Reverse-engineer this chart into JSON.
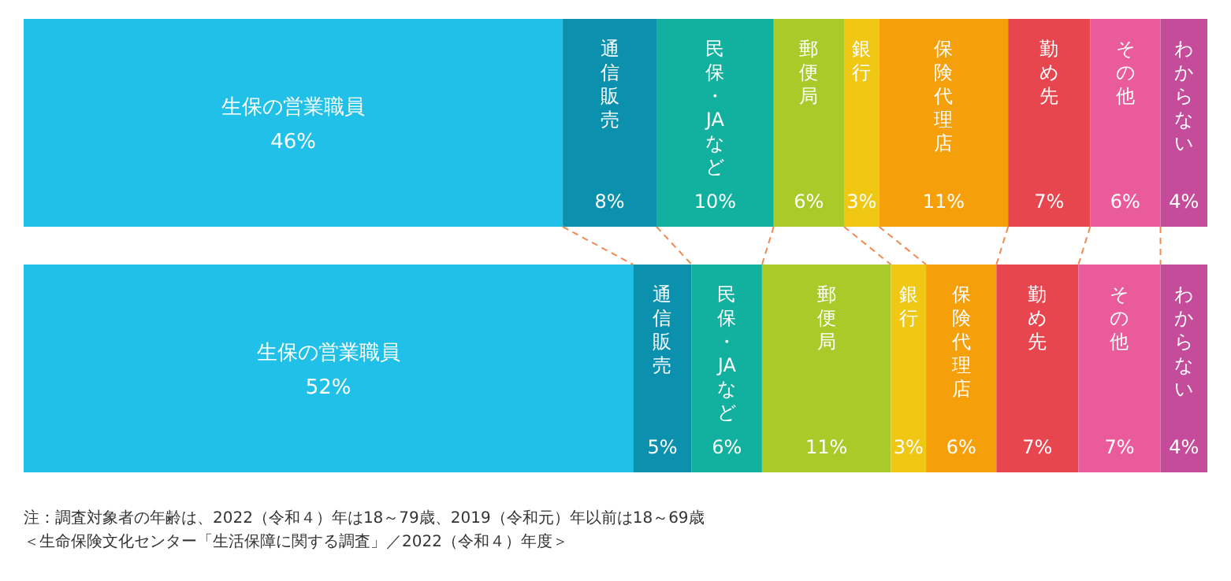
{
  "chart_data": {
    "type": "bar",
    "orientation": "horizontal",
    "stacked": true,
    "categories": [
      null,
      null
    ],
    "xlim": [
      0,
      101
    ],
    "tick_labels": false,
    "legend": false,
    "grid": false,
    "series": [
      {
        "name": "生保の営業職員",
        "color": "#20c0e8",
        "values": [
          46,
          52
        ],
        "value_labels": [
          "46%",
          "52%"
        ]
      },
      {
        "name": "通信販売",
        "color": "#0b90ae",
        "values": [
          8,
          5
        ],
        "value_labels": [
          "8%",
          "5%"
        ]
      },
      {
        "name": "民保・JAなど",
        "color": "#12b09e",
        "values": [
          10,
          6
        ],
        "value_labels": [
          "10%",
          "6%"
        ]
      },
      {
        "name": "郵便局",
        "color": "#a9cb2a",
        "values": [
          6,
          11
        ],
        "value_labels": [
          "6%",
          "11%"
        ]
      },
      {
        "name": "銀行",
        "color": "#f0c814",
        "values": [
          3,
          3
        ],
        "value_labels": [
          "3%",
          "3%"
        ]
      },
      {
        "name": "保険代理店",
        "color": "#f5a00a",
        "values": [
          11,
          6
        ],
        "value_labels": [
          "11%",
          "6%"
        ]
      },
      {
        "name": "勤め先",
        "color": "#e8464e",
        "values": [
          7,
          7
        ],
        "value_labels": [
          "7%",
          "7%"
        ]
      },
      {
        "name": "その他",
        "color": "#ea5b9c",
        "values": [
          6,
          7
        ],
        "value_labels": [
          "6%",
          "7%"
        ]
      },
      {
        "name": "わからない",
        "color": "#c54b9b",
        "values": [
          4,
          4
        ],
        "value_labels": [
          "4%",
          "4%"
        ]
      }
    ],
    "annotations": [
      "注：調査対象者の年齢は、2022（令和４）年は18～79歳、2019（令和元）年以前は18～69歳",
      "＜生命保険文化センター「生活保障に関する調査」／2022（令和４）年度＞"
    ]
  }
}
